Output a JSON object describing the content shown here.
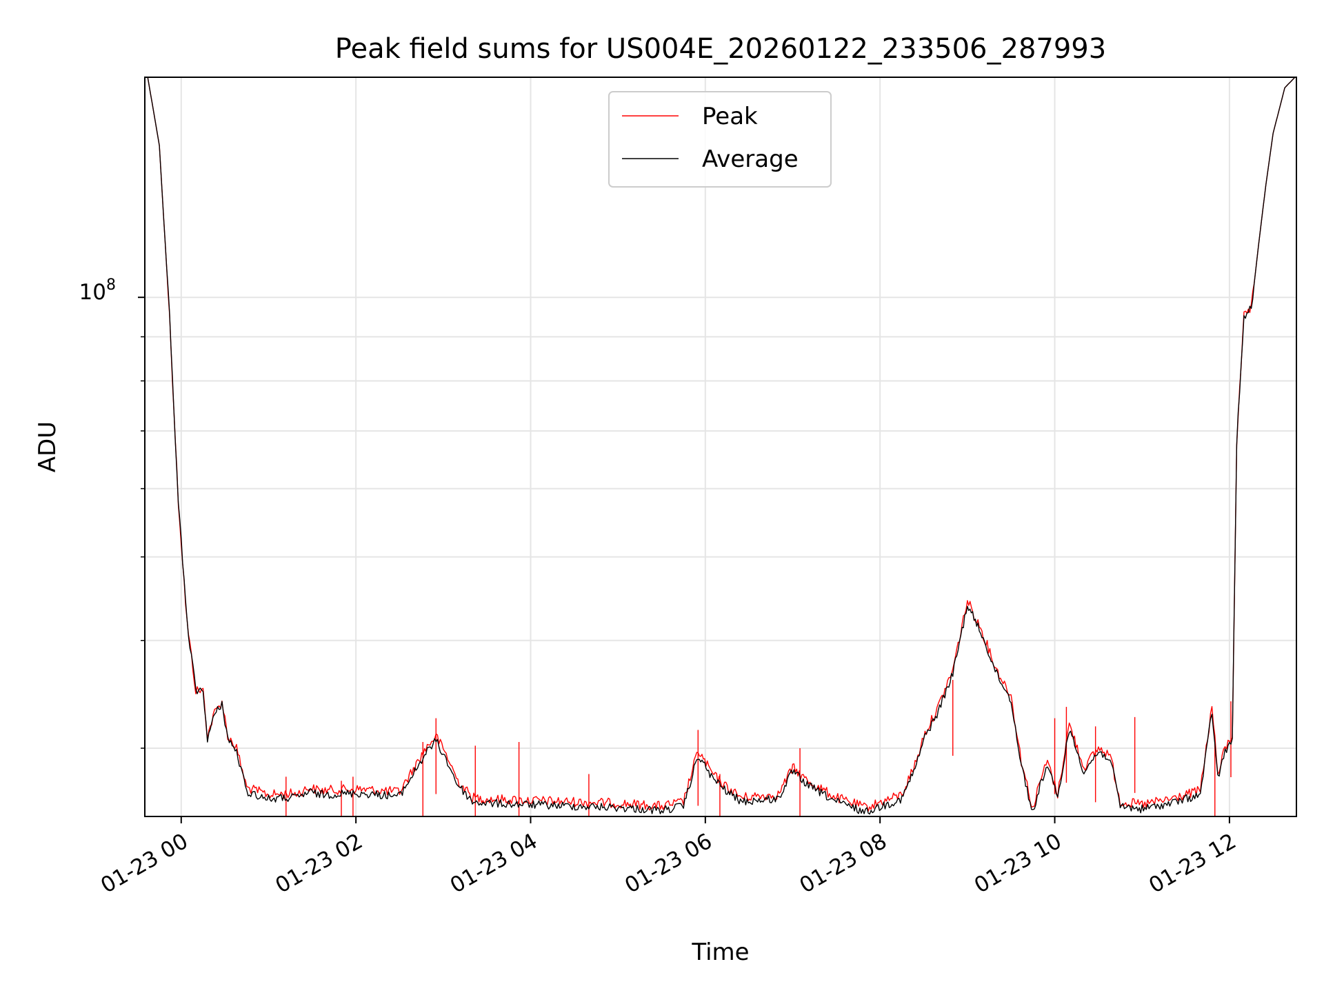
{
  "chart_data": {
    "type": "line",
    "title": "Peak field sums for US004E_20260122_233506_287993",
    "xlabel": "Time",
    "ylabel": "ADU",
    "yscale": "log",
    "ylim": [
      25000000,
      180000000
    ],
    "xlim": [
      "2026-01-22 23:35",
      "2026-01-23 12:46"
    ],
    "grid": true,
    "legend_position": "top-center",
    "x_ticks": [
      "01-23 00",
      "01-23 02",
      "01-23 04",
      "01-23 06",
      "01-23 08",
      "01-23 10",
      "01-23 12"
    ],
    "y_tick_label": "10^8",
    "series": [
      {
        "name": "Peak",
        "color": "#ff0000",
        "x": [
          "2026-01-22 23:37",
          "2026-01-22 23:45",
          "2026-01-22 23:52",
          "2026-01-22 23:58",
          "2026-01-23 00:04",
          "2026-01-23 00:10",
          "2026-01-23 00:15",
          "2026-01-23 00:18",
          "2026-01-23 00:23",
          "2026-01-23 00:28",
          "2026-01-23 00:32",
          "2026-01-23 00:38",
          "2026-01-23 00:45",
          "2026-01-23 01:00",
          "2026-01-23 01:20",
          "2026-01-23 01:28",
          "2026-01-23 01:35",
          "2026-01-23 02:00",
          "2026-01-23 02:30",
          "2026-01-23 02:48",
          "2026-01-23 02:55",
          "2026-01-23 03:02",
          "2026-01-23 03:10",
          "2026-01-23 03:20",
          "2026-01-23 03:30",
          "2026-01-23 04:00",
          "2026-01-23 05:00",
          "2026-01-23 05:30",
          "2026-01-23 05:45",
          "2026-01-23 05:55",
          "2026-01-23 06:05",
          "2026-01-23 06:15",
          "2026-01-23 06:25",
          "2026-01-23 06:35",
          "2026-01-23 06:50",
          "2026-01-23 07:00",
          "2026-01-23 07:10",
          "2026-01-23 07:30",
          "2026-01-23 07:50",
          "2026-01-23 08:15",
          "2026-01-23 08:25",
          "2026-01-23 08:30",
          "2026-01-23 08:40",
          "2026-01-23 08:50",
          "2026-01-23 09:00",
          "2026-01-23 09:10",
          "2026-01-23 09:20",
          "2026-01-23 09:30",
          "2026-01-23 09:37",
          "2026-01-23 09:45",
          "2026-01-23 09:50",
          "2026-01-23 09:55",
          "2026-01-23 10:02",
          "2026-01-23 10:10",
          "2026-01-23 10:20",
          "2026-01-23 10:30",
          "2026-01-23 10:38",
          "2026-01-23 10:45",
          "2026-01-23 11:00",
          "2026-01-23 11:20",
          "2026-01-23 11:40",
          "2026-01-23 11:48",
          "2026-01-23 11:52",
          "2026-01-23 11:57",
          "2026-01-23 12:02",
          "2026-01-23 12:05",
          "2026-01-23 12:10",
          "2026-01-23 12:15",
          "2026-01-23 12:20",
          "2026-01-23 12:25",
          "2026-01-23 12:30",
          "2026-01-23 12:38",
          "2026-01-23 12:45"
        ],
        "values": [
          180000000,
          150000000,
          95000000,
          58000000,
          42000000,
          35000000,
          35000000,
          31000000,
          33000000,
          34000000,
          31000000,
          30000000,
          27000000,
          26500000,
          26600000,
          27000000,
          26800000,
          26900000,
          26700000,
          30000000,
          31000000,
          29500000,
          27500000,
          26300000,
          26200000,
          26100000,
          25900000,
          25700000,
          26000000,
          29800000,
          28000000,
          27000000,
          26300000,
          26400000,
          26500000,
          28500000,
          27500000,
          26300000,
          25600000,
          26500000,
          29000000,
          31000000,
          33500000,
          37000000,
          44500000,
          41000000,
          37000000,
          34500000,
          29000000,
          25500000,
          27500000,
          29000000,
          26500000,
          32000000,
          28500000,
          30000000,
          29500000,
          26000000,
          25800000,
          26200000,
          26800000,
          33500000,
          28000000,
          30000000,
          31000000,
          68000000,
          95000000,
          97000000,
          115000000,
          135000000,
          155000000,
          175000000,
          180000000
        ],
        "spikes": [
          {
            "x": "2026-01-23 01:12",
            "value": 27800000
          },
          {
            "x": "2026-01-23 01:50",
            "value": 27500000
          },
          {
            "x": "2026-01-23 01:58",
            "value": 27800000
          },
          {
            "x": "2026-01-23 02:46",
            "value": 30500000
          },
          {
            "x": "2026-01-23 02:55",
            "value": 32500000
          },
          {
            "x": "2026-01-23 03:22",
            "value": 30200000
          },
          {
            "x": "2026-01-23 03:52",
            "value": 30500000
          },
          {
            "x": "2026-01-23 04:40",
            "value": 28000000
          },
          {
            "x": "2026-01-23 05:55",
            "value": 31500000
          },
          {
            "x": "2026-01-23 06:10",
            "value": 28000000
          },
          {
            "x": "2026-01-23 07:05",
            "value": 30000000
          },
          {
            "x": "2026-01-23 08:50",
            "value": 36000000
          },
          {
            "x": "2026-01-23 10:00",
            "value": 32500000
          },
          {
            "x": "2026-01-23 10:08",
            "value": 33500000
          },
          {
            "x": "2026-01-23 10:28",
            "value": 31800000
          },
          {
            "x": "2026-01-23 10:55",
            "value": 32600000
          },
          {
            "x": "2026-01-23 11:50",
            "value": 30500000
          },
          {
            "x": "2026-01-23 12:01",
            "value": 34000000
          }
        ]
      },
      {
        "name": "Average",
        "color": "#000000",
        "x": [
          "2026-01-22 23:37",
          "2026-01-22 23:45",
          "2026-01-22 23:52",
          "2026-01-22 23:58",
          "2026-01-23 00:04",
          "2026-01-23 00:10",
          "2026-01-23 00:15",
          "2026-01-23 00:18",
          "2026-01-23 00:23",
          "2026-01-23 00:28",
          "2026-01-23 00:32",
          "2026-01-23 00:38",
          "2026-01-23 00:45",
          "2026-01-23 01:00",
          "2026-01-23 01:20",
          "2026-01-23 01:28",
          "2026-01-23 01:35",
          "2026-01-23 02:00",
          "2026-01-23 02:30",
          "2026-01-23 02:48",
          "2026-01-23 02:55",
          "2026-01-23 03:02",
          "2026-01-23 03:10",
          "2026-01-23 03:20",
          "2026-01-23 03:30",
          "2026-01-23 04:00",
          "2026-01-23 05:00",
          "2026-01-23 05:30",
          "2026-01-23 05:45",
          "2026-01-23 05:55",
          "2026-01-23 06:05",
          "2026-01-23 06:15",
          "2026-01-23 06:25",
          "2026-01-23 06:35",
          "2026-01-23 06:50",
          "2026-01-23 07:00",
          "2026-01-23 07:10",
          "2026-01-23 07:30",
          "2026-01-23 07:50",
          "2026-01-23 08:15",
          "2026-01-23 08:25",
          "2026-01-23 08:30",
          "2026-01-23 08:40",
          "2026-01-23 08:50",
          "2026-01-23 09:00",
          "2026-01-23 09:10",
          "2026-01-23 09:20",
          "2026-01-23 09:30",
          "2026-01-23 09:37",
          "2026-01-23 09:45",
          "2026-01-23 09:50",
          "2026-01-23 09:55",
          "2026-01-23 10:02",
          "2026-01-23 10:10",
          "2026-01-23 10:20",
          "2026-01-23 10:30",
          "2026-01-23 10:38",
          "2026-01-23 10:45",
          "2026-01-23 11:00",
          "2026-01-23 11:20",
          "2026-01-23 11:40",
          "2026-01-23 11:48",
          "2026-01-23 11:52",
          "2026-01-23 11:57",
          "2026-01-23 12:02",
          "2026-01-23 12:05",
          "2026-01-23 12:10",
          "2026-01-23 12:15",
          "2026-01-23 12:20",
          "2026-01-23 12:25",
          "2026-01-23 12:30",
          "2026-01-23 12:38",
          "2026-01-23 12:45"
        ],
        "values": [
          180000000,
          150000000,
          95000000,
          58000000,
          42000000,
          35000000,
          35000000,
          30800000,
          32800000,
          33800000,
          30800000,
          29700000,
          26700000,
          26200000,
          26300000,
          26700000,
          26500000,
          26600000,
          26400000,
          29600000,
          30600000,
          29100000,
          27200000,
          26000000,
          25900000,
          25800000,
          25600000,
          25400000,
          25700000,
          29400000,
          27700000,
          26700000,
          26000000,
          26100000,
          26200000,
          28200000,
          27200000,
          26000000,
          25300000,
          26200000,
          28700000,
          30700000,
          33100000,
          36600000,
          44000000,
          40600000,
          36600000,
          34100000,
          28700000,
          25200000,
          27200000,
          28700000,
          26200000,
          31600000,
          28200000,
          29700000,
          29200000,
          25700000,
          25500000,
          25900000,
          26500000,
          33100000,
          27700000,
          29700000,
          30700000,
          68000000,
          95000000,
          97000000,
          115000000,
          135000000,
          155000000,
          175000000,
          180000000
        ]
      }
    ]
  }
}
